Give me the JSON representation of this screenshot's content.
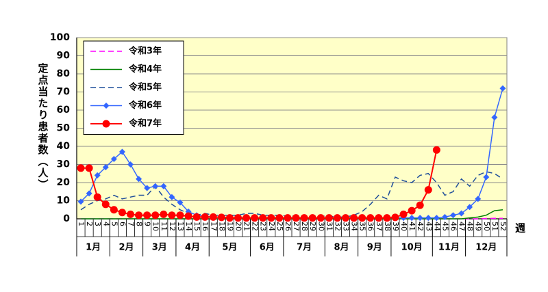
{
  "chart_data": {
    "type": "line",
    "y_label": "定点当たり患者数（人）",
    "x_label": "週",
    "categories": [
      "1",
      "2",
      "3",
      "4",
      "5",
      "6",
      "7",
      "8",
      "9",
      "10",
      "11",
      "12",
      "13",
      "14",
      "15",
      "16",
      "17",
      "18",
      "19",
      "20",
      "21",
      "22",
      "23",
      "24",
      "25",
      "26",
      "27",
      "28",
      "29",
      "30",
      "31",
      "32",
      "33",
      "34",
      "35",
      "36",
      "37",
      "38",
      "39",
      "40",
      "41",
      "42",
      "43",
      "44",
      "45",
      "46",
      "47",
      "48",
      "49",
      "50",
      "51",
      "52"
    ],
    "month_groups": [
      {
        "label": "1月",
        "start": 1,
        "end": 4
      },
      {
        "label": "2月",
        "start": 5,
        "end": 8
      },
      {
        "label": "3月",
        "start": 9,
        "end": 12
      },
      {
        "label": "4月",
        "start": 13,
        "end": 16
      },
      {
        "label": "5月",
        "start": 17,
        "end": 21
      },
      {
        "label": "6月",
        "start": 22,
        "end": 25
      },
      {
        "label": "7月",
        "start": 26,
        "end": 30
      },
      {
        "label": "8月",
        "start": 31,
        "end": 34
      },
      {
        "label": "9月",
        "start": 35,
        "end": 38
      },
      {
        "label": "10月",
        "start": 39,
        "end": 43
      },
      {
        "label": "11月",
        "start": 44,
        "end": 47
      },
      {
        "label": "12月",
        "start": 48,
        "end": 52
      }
    ],
    "series": [
      {
        "name": "令和3年",
        "color": "#ff00ff",
        "line_style": "dashed",
        "marker": "none",
        "values": [
          0,
          0,
          0,
          0,
          0,
          0,
          0,
          0,
          0,
          0,
          0,
          0,
          0,
          0,
          0,
          0,
          0,
          0,
          0,
          0,
          0,
          0,
          0,
          0,
          0,
          0,
          0,
          0,
          0,
          0,
          0,
          0,
          0,
          0,
          0,
          0,
          0,
          0,
          0,
          0,
          0,
          0,
          0,
          0,
          0,
          0,
          0,
          0,
          0,
          0.2,
          0.3,
          0.3
        ]
      },
      {
        "name": "令和4年",
        "color": "#008000",
        "line_style": "solid",
        "marker": "none",
        "values": [
          0,
          0,
          0,
          0,
          0,
          0,
          0,
          0,
          0,
          0,
          0,
          0,
          0,
          0,
          0,
          0,
          0,
          0,
          0,
          0,
          0,
          0,
          0,
          0,
          0,
          0,
          0,
          0,
          0,
          0,
          0,
          0,
          0,
          0,
          0,
          0,
          0,
          0,
          0,
          0,
          0,
          0,
          0,
          0,
          0,
          0,
          0,
          0.5,
          1,
          2,
          4.5,
          5
        ]
      },
      {
        "name": "令和5年",
        "color": "#1f4e9a",
        "line_style": "dashed",
        "marker": "none",
        "values": [
          5,
          8,
          10,
          11,
          13,
          11,
          12,
          13,
          13,
          18,
          12,
          8,
          5,
          3,
          2,
          3,
          2,
          2,
          2,
          2,
          3,
          3,
          2,
          2,
          2,
          1.5,
          1.5,
          1.5,
          1.5,
          1.5,
          1.5,
          1,
          1,
          2,
          4,
          8,
          13,
          11,
          23,
          21,
          20,
          24,
          25,
          20,
          13,
          15,
          22,
          18,
          24,
          26,
          25,
          22
        ]
      },
      {
        "name": "令和6年",
        "color": "#3366ff",
        "line_style": "solid",
        "marker": "diamond",
        "values": [
          9.5,
          14,
          24,
          28.5,
          33,
          37,
          30,
          22,
          17,
          18,
          18,
          12,
          9,
          4,
          2,
          1.5,
          1,
          1,
          0.5,
          0.5,
          0.5,
          0.5,
          0.5,
          0.5,
          0.5,
          0.5,
          0.5,
          0.5,
          0.5,
          0.5,
          0.5,
          0.5,
          0.5,
          0.5,
          0.5,
          0.5,
          0.5,
          0.5,
          0.5,
          0.5,
          0.5,
          0.5,
          0.5,
          0.5,
          1,
          2,
          3,
          6.5,
          11,
          23,
          56,
          72
        ]
      },
      {
        "name": "令和7年",
        "color": "#ff0000",
        "line_style": "solid",
        "marker": "circle",
        "values": [
          28,
          28,
          12,
          8,
          5,
          3.5,
          2.5,
          2,
          2,
          2,
          2.5,
          2,
          2,
          1.5,
          1,
          1,
          1,
          0.8,
          0.5,
          0.5,
          0.5,
          0.5,
          0.5,
          0.5,
          0.5,
          0.5,
          0.5,
          0.5,
          0.5,
          0.5,
          0.5,
          0.5,
          0.5,
          0.5,
          0.5,
          0.5,
          0.5,
          0.5,
          0.8,
          2.5,
          4.5,
          7.5,
          16,
          38,
          null,
          null,
          null,
          null,
          null,
          null,
          null,
          null
        ]
      }
    ],
    "ylim": [
      0,
      100
    ],
    "yticks": [
      0,
      10,
      20,
      30,
      40,
      50,
      60,
      70,
      80,
      90,
      100
    ],
    "grid": true,
    "legend": "upper-left"
  }
}
